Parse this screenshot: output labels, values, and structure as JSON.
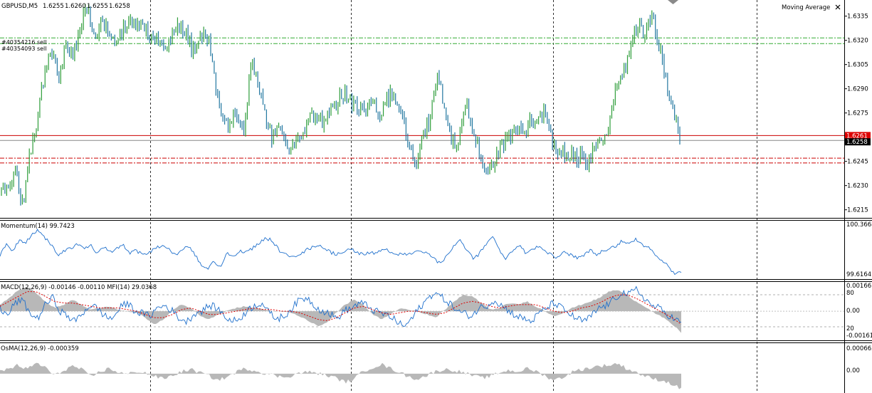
{
  "main": {
    "symbol_label": "GBPUSD,M5",
    "ohlc": [
      "1.6255",
      "1.6260",
      "1.6255",
      "1.6258"
    ],
    "indicator_label": "Moving Average",
    "close_icon": "close-icon",
    "order_labels": [
      "#40354216 sell",
      "#40354093 sell"
    ],
    "bid_tag": "1.6258",
    "ask_tag": "1.6261",
    "colors": {
      "bull": "#2e9d3a",
      "bear": "#2277a0",
      "ask": "#cc0000",
      "order": "#33aa33",
      "stop": "#cc0000",
      "indicator": "#1e6fcc",
      "histogram": "#b8b8b8",
      "signal": "#dd0000"
    }
  },
  "panes": {
    "momentum": {
      "label": "Momentum(14) 99.7423",
      "scale": [
        "100.3668",
        "99.6164"
      ]
    },
    "macd": {
      "label": "MACD(12,26,9) -0.00146 -0.00110  MFI(14) 29.0368",
      "scale": [
        "0.00166",
        "80",
        "0.00",
        "20",
        "-0.00161"
      ]
    },
    "osma": {
      "label": "OsMA(12,26,9) -0.000359",
      "scale": [
        "0.000663",
        "0.00"
      ]
    }
  },
  "chart_data": [
    {
      "type": "candlestick",
      "title": "GBPUSD,M5",
      "ylim": [
        1.621,
        1.6345
      ],
      "yticks": [
        "1.6335",
        "1.6320",
        "1.6305",
        "1.6290",
        "1.6275",
        "1.6260",
        "1.6245",
        "1.6230",
        "1.6215"
      ],
      "levels": {
        "bid": 1.6258,
        "ask": 1.6261,
        "sell_orders": [
          1.63215,
          1.6318
        ],
        "stop_levels": [
          1.6247,
          1.6244
        ]
      },
      "price_path": [
        1.6225,
        1.623,
        1.624,
        1.6218,
        1.625,
        1.627,
        1.63,
        1.6312,
        1.6298,
        1.6318,
        1.6308,
        1.633,
        1.634,
        1.6322,
        1.633,
        1.6325,
        1.6315,
        1.6328,
        1.6332,
        1.6328,
        1.633,
        1.6322,
        1.632,
        1.6315,
        1.6325,
        1.633,
        1.6322,
        1.6312,
        1.6322,
        1.6322,
        1.629,
        1.6268,
        1.627,
        1.6275,
        1.626,
        1.631,
        1.629,
        1.6272,
        1.6258,
        1.6265,
        1.6252,
        1.6255,
        1.6262,
        1.627,
        1.6275,
        1.627,
        1.6278,
        1.6282,
        1.6288,
        1.6282,
        1.628,
        1.6278,
        1.628,
        1.6275,
        1.6285,
        1.6288,
        1.6275,
        1.6255,
        1.6238,
        1.6262,
        1.627,
        1.63,
        1.628,
        1.6258,
        1.6255,
        1.6282,
        1.6268,
        1.625,
        1.624,
        1.6245,
        1.6255,
        1.6262,
        1.6265,
        1.6262,
        1.6268,
        1.627,
        1.6278,
        1.626,
        1.6252,
        1.625,
        1.625,
        1.6248,
        1.6244,
        1.6252,
        1.6258,
        1.6268,
        1.629,
        1.63,
        1.6315,
        1.633,
        1.6325,
        1.6335,
        1.632,
        1.6295,
        1.628,
        1.6258
      ]
    },
    {
      "type": "line",
      "title": "Momentum(14) 99.7423",
      "ylim": [
        99.6164,
        100.3668
      ],
      "values": [
        99.92,
        100.05,
        99.98,
        100.12,
        100.08,
        100.22,
        100.26,
        100.15,
        100.05,
        99.92,
        99.98,
        100.02,
        100.08,
        99.99,
        100.05,
        99.92,
        100.03,
        99.95,
        100.01,
        100.05,
        99.93,
        99.98,
        99.92,
        99.95,
        100.02,
        100.05,
        99.99,
        99.92,
        99.98,
        100.05,
        99.92,
        99.78,
        99.72,
        99.82,
        99.75,
        99.95,
        99.88,
        99.98,
        99.95,
        100.02,
        100.08,
        100.15,
        100.12,
        99.98,
        99.92,
        99.87,
        99.93,
        99.97,
        100.02,
        100.05,
        100.02,
        99.95,
        99.92,
        99.97,
        100.01,
        99.95,
        99.92,
        99.96,
        99.93,
        99.99,
        99.97,
        99.93,
        99.92,
        99.92,
        99.98,
        99.97,
        99.92,
        99.85,
        99.78,
        99.92,
        100.05,
        100.12,
        99.98,
        99.85,
        99.95,
        100.08,
        100.18,
        99.98,
        99.85,
        99.98,
        100.05,
        99.95,
        99.98,
        100.03,
        99.97,
        99.92,
        99.88,
        99.95,
        99.92,
        99.87,
        99.92,
        99.98,
        99.92,
        99.97,
        100.02,
        100.05,
        100.12,
        100.08,
        100.15,
        100.05,
        100.02,
        99.9,
        99.85,
        99.75,
        99.64,
        99.68
      ]
    },
    {
      "type": "line",
      "title": "MACD(12,26,9) -0.00146 -0.00110  MFI(14) 29.0368",
      "series": [
        {
          "name": "MACD",
          "values": [
            0.0004,
            0.0008,
            0.0013,
            0.0015,
            0.0011,
            0.0006,
            0.0002,
            0.0004,
            0.0007,
            0.0004,
            0.0001,
            0.0002,
            0.0003,
            0.0001,
            0.0,
            -0.0001,
            -0.0004,
            -0.0008,
            -0.0005,
            0.0001,
            0.0004,
            0.0002,
            -0.0003,
            -0.0005,
            -0.0002,
            0.0,
            0.0002,
            0.0003,
            0.0002,
            0.0001,
            0.0,
            0.0,
            -0.0001,
            -0.0003,
            -0.0006,
            -0.0009,
            -0.0007,
            -0.0001,
            0.0004,
            0.0007,
            0.0004,
            -0.0002,
            -0.0005,
            -0.0002,
            0.0002,
            0.0001,
            0.0,
            -0.0002,
            -0.0004,
            0.0001,
            0.0006,
            0.001,
            0.0009,
            0.0005,
            0.0001,
            0.0002,
            0.0005,
            0.0004,
            0.0006,
            0.0003,
            0.0,
            -0.0003,
            -0.0001,
            0.0002,
            0.0004,
            0.0006,
            0.0008,
            0.0012,
            0.0013,
            0.001,
            0.0006,
            0.0003,
            -0.0001,
            -0.0004,
            -0.0008,
            -0.0013
          ]
        },
        {
          "name": "Signal",
          "values": [
            0.0003,
            0.0006,
            0.0009,
            0.0012,
            0.0012,
            0.0009,
            0.0006,
            0.0005,
            0.0005,
            0.0004,
            0.0003,
            0.0002,
            0.0002,
            0.0002,
            0.0001,
            0.0,
            -0.0002,
            -0.0004,
            -0.0004,
            -0.0002,
            0.0001,
            0.0002,
            0.0,
            -0.0002,
            -0.0002,
            -0.0001,
            0.0,
            0.0001,
            0.0002,
            0.0001,
            0.0001,
            0.0,
            0.0,
            -0.0001,
            -0.0003,
            -0.0005,
            -0.0006,
            -0.0004,
            -0.0001,
            0.0002,
            0.0003,
            0.0001,
            -0.0001,
            -0.0002,
            -0.0001,
            0.0,
            0.0,
            -0.0001,
            -0.0002,
            -0.0001,
            0.0002,
            0.0005,
            0.0006,
            0.0005,
            0.0003,
            0.0002,
            0.0003,
            0.0004,
            0.0004,
            0.0004,
            0.0002,
            0.0,
            -0.0001,
            0.0,
            0.0002,
            0.0003,
            0.0005,
            0.0008,
            0.001,
            0.001,
            0.0008,
            0.0005,
            0.0002,
            -0.0001,
            -0.0004,
            -0.0008
          ]
        },
        {
          "name": "MFI",
          "values": [
            55,
            40,
            65,
            70,
            45,
            35,
            60,
            75,
            50,
            40,
            30,
            45,
            60,
            55,
            40,
            35,
            55,
            65,
            50,
            45,
            40,
            55,
            60,
            50,
            35,
            30,
            45,
            50,
            60,
            55,
            40,
            30,
            35,
            50,
            60,
            65,
            45,
            35,
            40,
            55,
            70,
            75,
            60,
            50,
            45,
            35,
            50,
            55,
            65,
            60,
            50,
            45,
            40,
            30,
            20,
            35,
            55,
            70,
            85,
            75,
            65,
            50,
            45,
            40,
            55,
            60,
            70,
            60,
            50,
            40,
            35,
            30,
            45,
            55,
            65,
            55,
            45,
            35,
            30,
            40,
            55,
            60,
            70,
            85,
            80,
            90,
            75,
            60,
            55,
            45,
            35,
            28
          ]
        }
      ],
      "ylim": [
        -0.00161,
        0.00166
      ]
    },
    {
      "type": "area",
      "title": "OsMA(12,26,9) -0.000359",
      "ylim": [
        -0.00045,
        0.000663
      ],
      "values": [
        5e-05,
        0.00012,
        0.0002,
        0.0001,
        0.00025,
        0.00015,
        -5e-05,
        8e-05,
        0.00018,
        0.0001,
        -8e-05,
        5e-05,
        0.00012,
        4e-05,
        -2e-05,
        6e-05,
        2e-05,
        -6e-05,
        -0.00012,
        -4e-05,
        5e-05,
        0.0001,
        3e-05,
        -5e-05,
        -0.00015,
        -8e-05,
        4e-05,
        0.00012,
        8e-05,
        2e-05,
        -3e-05,
        -8e-05,
        -5e-05,
        2e-05,
        4e-05,
        1e-05,
        -4e-05,
        -0.0001,
        -0.0002,
        -0.00012,
        6e-05,
        0.00015,
        0.00022,
        0.00012,
        4e-05,
        -8e-05,
        -0.00012,
        -4e-05,
        6e-05,
        0.0001,
        8e-05,
        3e-05,
        -4e-05,
        -0.0001,
        -6e-05,
        3e-05,
        8e-05,
        5e-05,
        0.00012,
        6e-05,
        -5e-05,
        -0.00015,
        -8e-05,
        4e-05,
        0.0001,
        0.00014,
        0.00018,
        0.0002,
        0.00024,
        0.00012,
        4e-05,
        -6e-05,
        -0.00012,
        -0.00016,
        -0.00024,
        -0.00036
      ]
    }
  ]
}
